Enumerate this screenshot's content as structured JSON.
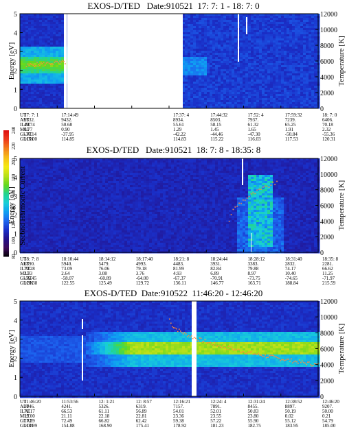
{
  "panels": [
    {
      "title": "EXOS-D/TED   Date:910521  17: 7: 1 - 18: 7: 0",
      "ylabel": "Energy [eV]",
      "y2label": "Temperature [K]",
      "energy_ticks": [
        "0",
        "1",
        "2",
        "3",
        "4",
        "5"
      ],
      "temp_ticks": [
        "0",
        "2000",
        "4000",
        "6000",
        "8000",
        "10000",
        "12000"
      ],
      "ephemeris": {
        "labels": [
          "UT",
          "ALT",
          "ILAT",
          "MLT",
          "GLAT",
          "GLON"
        ],
        "columns": [
          [
            "17: 7: 1",
            "9332.",
            "49.74",
            "0.77",
            "-37.14",
            "115.00"
          ],
          [
            "17:14:49",
            "9432.",
            "50.68",
            "0.90",
            "-37.95",
            "114.85"
          ],
          [
            "",
            "",
            "",
            "",
            "",
            ""
          ],
          [
            "",
            "",
            "",
            "",
            "",
            ""
          ],
          [
            "17:37: 4",
            "8934.",
            "55.61",
            "1.29",
            "-42.22",
            "114.83"
          ],
          [
            "17:44:32",
            "8503.",
            "58.15",
            "1.45",
            "-44.46",
            "115.22"
          ],
          [
            "17:52: 4",
            "7937.",
            "61.32",
            "1.65",
            "-47.30",
            "116.03"
          ],
          [
            "17:59:32",
            "7239.",
            "65.25",
            "1.91",
            "-50.84",
            "117.53"
          ],
          [
            "18: 7: 0",
            "6406.",
            "70.18",
            "2.32",
            "-55.36",
            "120.31"
          ]
        ]
      }
    },
    {
      "title": "EXOS-D/TED   Date:910521  18: 7: 8 - 18:35: 8",
      "ylabel": "Energy [eV]",
      "y2label": "Temperature [K]",
      "colorbar_label": "Second Harmonic Current",
      "energy_ticks": [
        "0",
        "1",
        "2",
        "3",
        "4",
        "5"
      ],
      "temp_ticks": [
        "0",
        "2000",
        "4000",
        "6000",
        "8000",
        "10000",
        "12000"
      ],
      "ephemeris": {
        "labels": [
          "UT",
          "ALT",
          "ILAT",
          "MLT",
          "GLAT",
          "GLON"
        ],
        "columns": [
          [
            "18: 7: 8",
            "6390.",
            "70.28",
            "2.33",
            "-55.45",
            "120.38"
          ],
          [
            "18:10:44",
            "5940.",
            "73.09",
            "2.64",
            "-58.07",
            "122.55"
          ],
          [
            "18:14:12",
            "5479.",
            "76.06",
            "3.08",
            "-60.89",
            "125.49"
          ],
          [
            "18:17:40",
            "4993.",
            "79.18",
            "3.76",
            "-64.00",
            "129.72"
          ],
          [
            "18:21: 8",
            "4483.",
            "81.99",
            "4.93",
            "-67.37",
            "136.11"
          ],
          [
            "18:24:44",
            "3931.",
            "82.84",
            "6.89",
            "-70.91",
            "146.77"
          ],
          [
            "18:28:12",
            "3383.",
            "79.88",
            "8.97",
            "-73.75",
            "163.71"
          ],
          [
            "18:31:40",
            "2832.",
            "74.17",
            "10.40",
            "-74.65",
            "188.84"
          ],
          [
            "18:35: 8",
            "2281.",
            "66.62",
            "11.25",
            "-71.97",
            "215.59"
          ]
        ]
      }
    },
    {
      "title": "EXOS-D/TED  Date:910522  11:46:20 - 12:46:20",
      "ylabel": "Energy [eV]",
      "y2label": "Temperature [K]",
      "energy_ticks": [
        "0",
        "1",
        "2",
        "3",
        "4",
        "5"
      ],
      "temp_ticks": [
        "0",
        "2000",
        "4000",
        "6000",
        "8000",
        "10000",
        "12000"
      ],
      "ephemeris": {
        "labels": [
          "UT",
          "ALT",
          "ILAT",
          "MLT",
          "GLAT",
          "GLON"
        ],
        "columns": [
          [
            "11:46:20",
            "3046.",
            "71.17",
            "19.00",
            "77.39",
            "113.99"
          ],
          [
            "11:53:56",
            "4241.",
            "66.53",
            "21.11",
            "72.49",
            "154.88"
          ],
          [
            "12: 1:21",
            "5326.",
            "61.11",
            "22.18",
            "66.82",
            "168.90"
          ],
          [
            "12: 8:57",
            "6319.",
            "56.89",
            "22.81",
            "62.42",
            "175.41"
          ],
          [
            "12:16:21",
            "7157.",
            "54.01",
            "23.36",
            "59.38",
            "178.92"
          ],
          [
            "12:24: 4",
            "7891.",
            "52.01",
            "23.55",
            "57.22",
            "181.23"
          ],
          [
            "12:31:24",
            "8455.",
            "50.83",
            "23.80",
            "55.90",
            "182.75"
          ],
          [
            "12:38:52",
            "8897.",
            "50.19",
            "0.02",
            "55.12",
            "183.95"
          ],
          [
            "12:46:20",
            "9207.",
            "50.00",
            "0.21",
            "54.79",
            "185.00"
          ]
        ]
      }
    }
  ],
  "colorbar": {
    "ticks": [
      "80",
      "100",
      "120",
      "140",
      "160",
      "180",
      "200",
      "220",
      "240"
    ],
    "colors": [
      "#000000",
      "#3d0a5a",
      "#23108a",
      "#1a2fc8",
      "#1c64ef",
      "#0f9ef2",
      "#18cfd8",
      "#22d48f",
      "#64d81e",
      "#b7e01a",
      "#f3ea13",
      "#f6c017",
      "#f3821c",
      "#ee3d1c",
      "#df1111"
    ]
  },
  "chart_data": [
    {
      "type": "heatmap",
      "title": "EXOS-D/TED   Date:910521  17: 7: 1 - 18: 7: 0",
      "xlabel": "UT",
      "ylabel": "Energy [eV]",
      "y2label": "Temperature [K]",
      "ylim": [
        0,
        5
      ],
      "y2lim": [
        0,
        12000
      ],
      "x_ticks": [
        "17: 7: 1",
        "17:14:49",
        "17:37: 4",
        "17:44:32",
        "17:52: 4",
        "17:59:32",
        "18: 7: 0"
      ],
      "data_gaps_ut": [
        [
          "17:14:00",
          "17:16:00"
        ],
        [
          "17:16:30",
          "17:36:00"
        ]
      ],
      "bright_band": {
        "ut": [
          "17: 7: 1",
          "17:16:00"
        ],
        "energy_ev": [
          1.7,
          3.0
        ],
        "level": 170
      },
      "temperature_k": [
        {
          "ut": "17: 7: 1",
          "k": 5400
        },
        {
          "ut": "17:10:00",
          "k": 5600
        },
        {
          "ut": "17:14:49",
          "k": 5900
        }
      ],
      "colorbar_range": [
        80,
        240
      ]
    },
    {
      "type": "heatmap",
      "title": "EXOS-D/TED   Date:910521  18: 7: 8 - 18:35: 8",
      "xlabel": "UT",
      "ylabel": "Energy [eV]",
      "y2label": "Temperature [K]",
      "ylim": [
        0,
        5
      ],
      "y2lim": [
        0,
        12000
      ],
      "x_ticks": [
        "18: 7: 8",
        "18:10:44",
        "18:14:12",
        "18:17:40",
        "18:21: 8",
        "18:24:44",
        "18:28:12",
        "18:31:40",
        "18:35: 8"
      ],
      "enhancement": {
        "ut": [
          "18:30:00",
          "18:33:00"
        ],
        "energy_ev": [
          0.5,
          4.0
        ],
        "level": 140
      },
      "colorbar_range": [
        80,
        240
      ]
    },
    {
      "type": "heatmap",
      "title": "EXOS-D/TED  Date:910522  11:46:20 - 12:46:20",
      "xlabel": "UT",
      "ylabel": "Energy [eV]",
      "y2label": "Temperature [K]",
      "ylim": [
        0,
        5
      ],
      "y2lim": [
        0,
        12000
      ],
      "x_ticks": [
        "11:46:20",
        "11:53:56",
        "12: 1:21",
        "12: 8:57",
        "12:16:21",
        "12:24: 4",
        "12:31:24",
        "12:38:52",
        "12:46:20"
      ],
      "bright_band": {
        "ut": [
          "12:03:00",
          "12:46:20"
        ],
        "energy_ev": [
          2.0,
          3.2
        ],
        "level": 170
      },
      "temperature_k": [
        {
          "ut": "12:08:57",
          "k": 9800
        },
        {
          "ut": "12:12:00",
          "k": 8800
        },
        {
          "ut": "12:16:21",
          "k": 7600
        },
        {
          "ut": "12:24: 4",
          "k": 6200
        },
        {
          "ut": "12:31:24",
          "k": 5200
        },
        {
          "ut": "12:38:52",
          "k": 4600
        },
        {
          "ut": "12:46:20",
          "k": 4000
        }
      ],
      "colorbar_range": [
        80,
        240
      ]
    }
  ]
}
